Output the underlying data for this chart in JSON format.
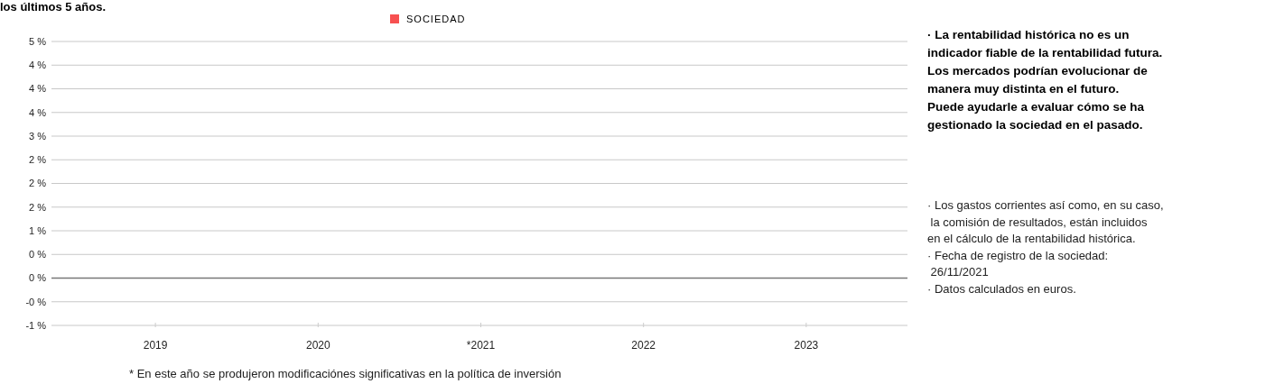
{
  "chart_data": {
    "type": "bar",
    "title": "los últimos 5 años.",
    "categories": [
      "2019",
      "2020",
      "*2021",
      "2022",
      "2023"
    ],
    "series": [
      {
        "name": "SOCIEDAD",
        "color": "#f75050",
        "values": [
          null,
          null,
          null,
          null,
          null
        ]
      }
    ],
    "ylim": [
      -1,
      5
    ],
    "yticks": [
      {
        "value": -1,
        "label": "-1 %"
      },
      {
        "value": -0.5,
        "label": "-0 %"
      },
      {
        "value": 0,
        "label": "0 %"
      },
      {
        "value": 0.5,
        "label": "0 %"
      },
      {
        "value": 1,
        "label": "1 %"
      },
      {
        "value": 1.5,
        "label": "2 %"
      },
      {
        "value": 2,
        "label": "2 %"
      },
      {
        "value": 2.5,
        "label": "2 %"
      },
      {
        "value": 3,
        "label": "3 %"
      },
      {
        "value": 3.5,
        "label": "4 %"
      },
      {
        "value": 4,
        "label": "4 %"
      },
      {
        "value": 4.5,
        "label": "4 %"
      },
      {
        "value": 5,
        "label": "5 %"
      }
    ],
    "grid": "y",
    "legend": "top",
    "annotations": [
      "· La rentabilidad histórica no es un\nindicador fiable de la rentabilidad futura.\nLos mercados podrían evolucionar de\nmanera muy distinta en el futuro.\nPuede ayudarle a evaluar cómo se ha\ngestionado la sociedad en el pasado.",
      "· Los gastos corrientes así como, en su caso,\n la comisión de resultados, están incluidos\nen el cálculo de la rentabilidad histórica.\n· Fecha de registro de la sociedad:\n 26/11/2021\n· Datos calculados en euros.",
      "* En este año se produjeron modificaciónes significativas en la política de inversión"
    ]
  }
}
